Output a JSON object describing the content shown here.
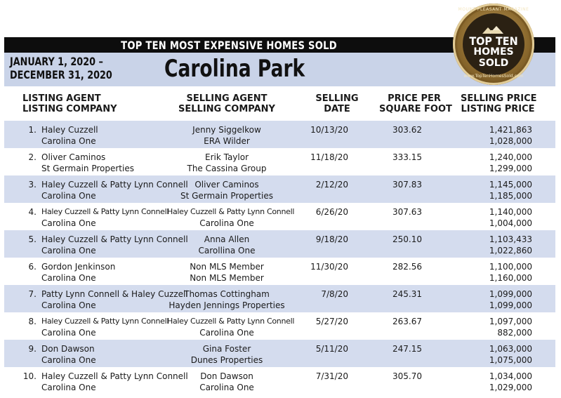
{
  "banner": "TOP TEN MOST EXPENSIVE HOMES SOLD",
  "date_range": [
    "JANUARY 1, 2020 –",
    "DECEMBER 31, 2020"
  ],
  "neighborhood": "Carolina Park",
  "badge": {
    "top_text": "MOUNT PLEASANT MAGAZINE",
    "line1": "TOP TEN",
    "line2": "HOMES",
    "line3": "SOLD",
    "bottom_text": "www.TopTenHomesSold.com"
  },
  "headers": {
    "listing": [
      "LISTING AGENT",
      "LISTING COMPANY"
    ],
    "selling": [
      "SELLING AGENT",
      "SELLING COMPANY"
    ],
    "date": [
      "SELLING",
      "DATE"
    ],
    "ppsf": [
      "PRICE PER",
      "SQUARE FOOT"
    ],
    "price": [
      "SELLING PRICE",
      "LISTING PRICE"
    ]
  },
  "rows": [
    {
      "num": "1.",
      "listing_agent": "Haley Cuzzell",
      "listing_company": "Carolina One",
      "selling_agent": "Jenny Siggelkow",
      "selling_company": "ERA Wilder",
      "date": "10/13/20",
      "ppsf": "303.62",
      "selling_price": "1,421,863",
      "listing_price": "1,028,000"
    },
    {
      "num": "2.",
      "listing_agent": "Oliver Caminos",
      "listing_company": "St Germain Properties",
      "selling_agent": "Erik Taylor",
      "selling_company": "The Cassina Group",
      "date": "11/18/20",
      "ppsf": "333.15",
      "selling_price": "1,240,000",
      "listing_price": "1,299,000"
    },
    {
      "num": "3.",
      "listing_agent": "Haley Cuzzell & Patty Lynn Connell",
      "listing_company": "Carolina One",
      "selling_agent": "Oliver Caminos",
      "selling_company": "St Germain Properties",
      "date": "2/12/20",
      "ppsf": "307.83",
      "selling_price": "1,145,000",
      "listing_price": "1,185,000"
    },
    {
      "num": "4.",
      "listing_agent": "Haley Cuzzell & Patty Lynn Connell",
      "listing_company": "Carolina One",
      "selling_agent": "Haley Cuzzell & Patty Lynn Connell",
      "selling_company": "Carolina One",
      "date": "6/26/20",
      "ppsf": "307.63",
      "selling_price": "1,140,000",
      "listing_price": "1,004,000"
    },
    {
      "num": "5.",
      "listing_agent": "Haley Cuzzell & Patty Lynn Connell",
      "listing_company": "Carolina One",
      "selling_agent": "Anna Allen",
      "selling_company": "Carollina One",
      "date": "9/18/20",
      "ppsf": "250.10",
      "selling_price": "1,103,433",
      "listing_price": "1,022,860"
    },
    {
      "num": "6.",
      "listing_agent": "Gordon Jenkinson",
      "listing_company": "Carolina One",
      "selling_agent": "Non MLS Member",
      "selling_company": "Non MLS Member",
      "date": "11/30/20",
      "ppsf": "282.56",
      "selling_price": "1,100,000",
      "listing_price": "1,160,000"
    },
    {
      "num": "7.",
      "listing_agent": "Patty Lynn Connell & Haley Cuzzell",
      "listing_company": "Carolina One",
      "selling_agent": "Thomas Cottingham",
      "selling_company": "Hayden Jennings Properties",
      "date": "7/8/20",
      "ppsf": "245.31",
      "selling_price": "1,099,000",
      "listing_price": "1,099,000"
    },
    {
      "num": "8.",
      "listing_agent": "Haley Cuzzell & Patty Lynn Connell",
      "listing_company": "Carolina One",
      "selling_agent": "Haley Cuzzell & Patty Lynn Connell",
      "selling_company": "Carolina One",
      "date": "5/27/20",
      "ppsf": "263.67",
      "selling_price": "1,097,000",
      "listing_price": "882,000"
    },
    {
      "num": "9.",
      "listing_agent": "Don Dawson",
      "listing_company": "Carolina One",
      "selling_agent": "Gina Foster",
      "selling_company": "Dunes Properties",
      "date": "5/11/20",
      "ppsf": "247.15",
      "selling_price": "1,063,000",
      "listing_price": "1,075,000"
    },
    {
      "num": "10.",
      "listing_agent": "Haley Cuzzell & Patty Lynn Connell",
      "listing_company": "Carolina One",
      "selling_agent": "Don Dawson",
      "selling_company": "Carolina One",
      "date": "7/31/20",
      "ppsf": "305.70",
      "selling_price": "1,034,000",
      "listing_price": "1,029,000"
    }
  ]
}
